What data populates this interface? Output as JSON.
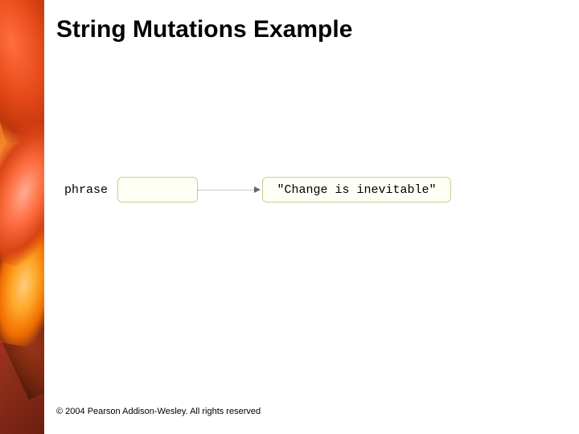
{
  "slide": {
    "title": "String Mutations Example",
    "footer": "© 2004 Pearson Addison-Wesley. All rights reserved"
  },
  "diagram": {
    "variable_label": "phrase",
    "string_value": "\"Change is inevitable\"",
    "box_bg_color": "#fffff5",
    "box_border_color": "#cccc99",
    "arrow_color": "#666666"
  },
  "colors": {
    "title_color": "#000000",
    "background": "#ffffff"
  }
}
